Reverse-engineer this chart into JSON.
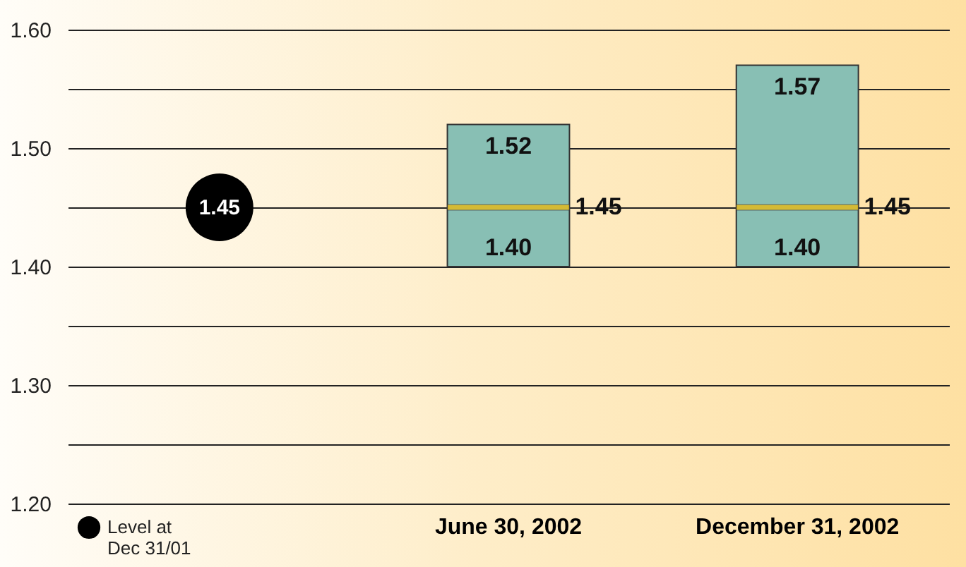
{
  "chart_data": {
    "type": "box",
    "categories": [
      null,
      "June 30, 2002",
      "December 31, 2002"
    ],
    "series": [
      {
        "color": "#88bfb4",
        "boxes": [
          null,
          {
            "low": 1.4,
            "q1": 1.4,
            "median": 1.45,
            "q3": 1.52,
            "high": 1.52
          },
          {
            "low": 1.4,
            "q1": 1.4,
            "median": 1.45,
            "q3": 1.57,
            "high": 1.57
          }
        ]
      },
      {
        "type": "scatter",
        "name": "Level at Dec 31/01",
        "color": "#000000",
        "marker": "circle",
        "values": [
          1.45,
          null,
          null
        ],
        "value_labels": [
          "1.45",
          null,
          null
        ]
      }
    ],
    "annotations": [
      {
        "text": "1.52",
        "x": "June 30, 2002",
        "y": 1.52
      },
      {
        "text": "1.40",
        "x": "June 30, 2002",
        "y": 1.4
      },
      {
        "text": "1.45",
        "x": "June 30, 2002",
        "y": 1.45
      },
      {
        "text": "1.57",
        "x": "December 31, 2002",
        "y": 1.57
      },
      {
        "text": "1.40",
        "x": "December 31, 2002",
        "y": 1.4
      },
      {
        "text": "1.45",
        "x": "December 31, 2002",
        "y": 1.45
      }
    ],
    "ylim": [
      1.2,
      1.6
    ],
    "yticks": [
      {
        "value": 1.2,
        "label": "1.20"
      },
      {
        "value": 1.25,
        "label": null
      },
      {
        "value": 1.3,
        "label": "1.30"
      },
      {
        "value": 1.35,
        "label": null
      },
      {
        "value": 1.4,
        "label": "1.40"
      },
      {
        "value": 1.45,
        "label": null
      },
      {
        "value": 1.5,
        "label": "1.50"
      },
      {
        "value": 1.55,
        "label": null
      },
      {
        "value": 1.6,
        "label": "1.60"
      }
    ],
    "grid": "y",
    "legend": "bottom left"
  }
}
